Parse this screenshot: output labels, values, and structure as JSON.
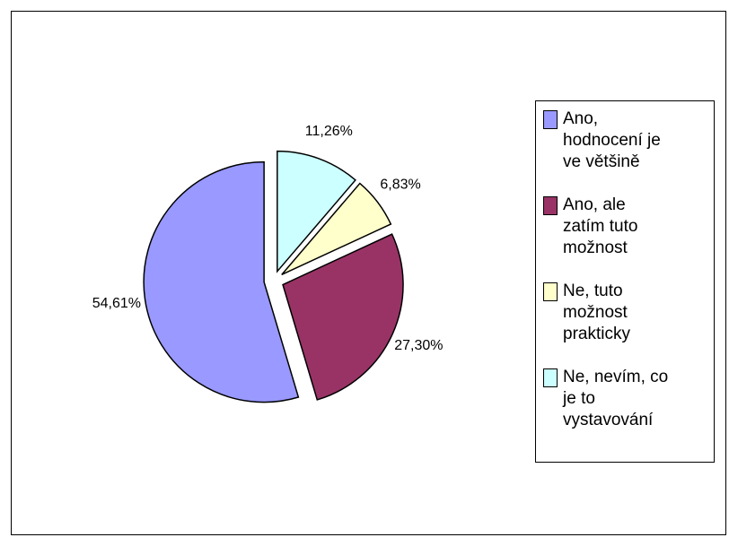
{
  "chart_data": {
    "type": "pie",
    "categories": [
      "Ano, hodnocení je ve většině",
      "Ano, ale zatím tuto možnost",
      "Ne, tuto možnost prakticky",
      "Ne, nevím, co je to vystavování"
    ],
    "values": [
      54.61,
      27.3,
      6.83,
      11.26
    ],
    "value_labels": [
      "54,61%",
      "27,30%",
      "6,83%",
      "11,26%"
    ],
    "colors": [
      "#9999ff",
      "#993366",
      "#ffffcc",
      "#ccffff"
    ],
    "legend": "right"
  }
}
